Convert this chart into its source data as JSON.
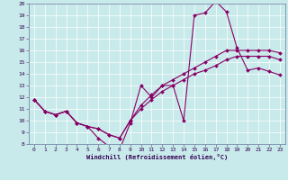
{
  "xlabel": "Windchill (Refroidissement éolien,°C)",
  "xlim": [
    -0.5,
    23.5
  ],
  "ylim": [
    8,
    20
  ],
  "xticks": [
    0,
    1,
    2,
    3,
    4,
    5,
    6,
    7,
    8,
    9,
    10,
    11,
    12,
    13,
    14,
    15,
    16,
    17,
    18,
    19,
    20,
    21,
    22,
    23
  ],
  "yticks": [
    8,
    9,
    10,
    11,
    12,
    13,
    14,
    15,
    16,
    17,
    18,
    19,
    20
  ],
  "bg_color": "#c8eaea",
  "line_color": "#880066",
  "curve1_x": [
    0,
    1,
    2,
    3,
    4,
    5,
    6,
    7,
    8,
    9,
    10,
    11,
    12,
    13,
    14,
    15,
    16,
    17,
    18,
    19,
    20,
    21,
    22,
    23
  ],
  "curve1_y": [
    11.8,
    10.8,
    10.5,
    10.8,
    9.8,
    9.5,
    8.5,
    7.8,
    7.5,
    9.8,
    13.0,
    12.0,
    13.0,
    13.0,
    10.0,
    19.0,
    19.2,
    20.2,
    19.3,
    16.2,
    14.3,
    14.5,
    14.2,
    13.9
  ],
  "curve2_x": [
    0,
    1,
    2,
    3,
    4,
    5,
    6,
    7,
    8,
    9,
    10,
    11,
    12,
    13,
    14,
    15,
    16,
    17,
    18,
    19,
    20,
    21,
    22,
    23
  ],
  "curve2_y": [
    11.8,
    10.8,
    10.5,
    10.8,
    9.8,
    9.5,
    9.3,
    8.8,
    8.5,
    10.0,
    11.0,
    11.8,
    12.5,
    13.0,
    13.5,
    14.0,
    14.3,
    14.7,
    15.2,
    15.5,
    15.5,
    15.5,
    15.5,
    15.2
  ],
  "curve3_x": [
    0,
    1,
    2,
    3,
    4,
    5,
    6,
    7,
    8,
    9,
    10,
    11,
    12,
    13,
    14,
    15,
    16,
    17,
    18,
    19,
    20,
    21,
    22,
    23
  ],
  "curve3_y": [
    11.8,
    10.8,
    10.5,
    10.8,
    9.8,
    9.5,
    9.3,
    8.8,
    8.5,
    10.0,
    11.3,
    12.2,
    13.0,
    13.5,
    14.0,
    14.5,
    15.0,
    15.5,
    16.0,
    16.0,
    16.0,
    16.0,
    16.0,
    15.8
  ]
}
